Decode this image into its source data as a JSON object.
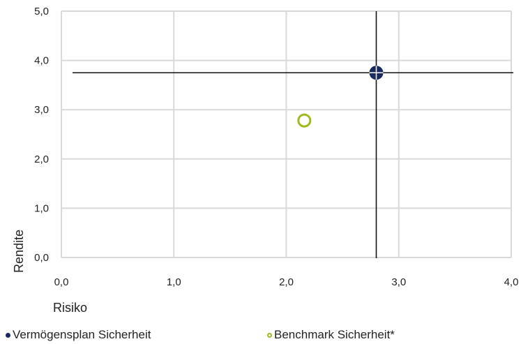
{
  "chart_data": {
    "type": "scatter",
    "xlabel": "Risiko",
    "ylabel": "Rendite",
    "xlim": [
      0,
      4
    ],
    "ylim": [
      0,
      5
    ],
    "x_ticks": [
      "0,0",
      "1,0",
      "2,0",
      "3,0",
      "4,0"
    ],
    "y_ticks": [
      "0,0",
      "1,0",
      "2,0",
      "3,0",
      "4,0",
      "5,0"
    ],
    "grid": true,
    "legend_position": "bottom",
    "series": [
      {
        "name": "Vermögensplan Sicherheit",
        "x": [
          2.8
        ],
        "y": [
          3.75
        ],
        "color": "#1b2a5c",
        "marker": "filled-circle-crosshair"
      },
      {
        "name": "Benchmark Sicherheit*",
        "x": [
          2.16
        ],
        "y": [
          2.78
        ],
        "color": "#a0b81e",
        "marker": "hollow-circle"
      }
    ]
  }
}
